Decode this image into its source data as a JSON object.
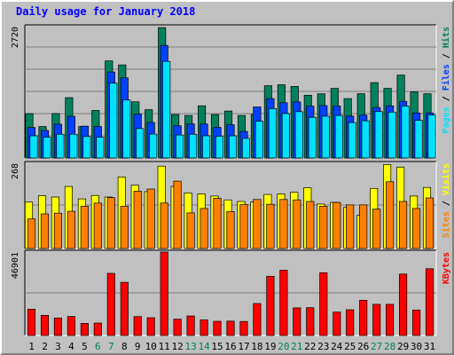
{
  "chart_data": {
    "type": "bar",
    "title": "Daily usage for January 2018",
    "categories": [
      "1",
      "2",
      "3",
      "4",
      "5",
      "6",
      "7",
      "8",
      "9",
      "10",
      "11",
      "12",
      "13",
      "14",
      "15",
      "16",
      "17",
      "18",
      "19",
      "20",
      "21",
      "22",
      "23",
      "24",
      "25",
      "26",
      "27",
      "28",
      "29",
      "30",
      "31"
    ],
    "weekend_days": [
      "6",
      "7",
      "13",
      "14",
      "20",
      "21",
      "27",
      "28"
    ],
    "grid": true,
    "panels": [
      {
        "id": "hits-files-pages",
        "max_label": "2720",
        "ymax": 2720,
        "axis_label_parts": [
          {
            "text": "Pages",
            "color": "#00e0ff"
          },
          {
            "text": " / ",
            "color": "#000000"
          },
          {
            "text": "Files",
            "color": "#0040ff"
          },
          {
            "text": " / ",
            "color": "#000000"
          },
          {
            "text": "Hits",
            "color": "#00805c"
          }
        ],
        "series": [
          {
            "name": "Hits",
            "color": "#00805c",
            "values": [
              918,
              650,
              918,
              1250,
              650,
              984,
              2010,
              1928,
              1164,
              1000,
              2700,
              900,
              880,
              1080,
              900,
              972,
              880,
              900,
              1496,
              1516,
              1482,
              1300,
              1328,
              1440,
              1230,
              1330,
              1560,
              1440,
              1716,
              1370,
              1328
            ]
          },
          {
            "name": "Files",
            "color": "#0040ff",
            "values": [
              632,
              570,
              700,
              864,
              659,
              650,
              1780,
              1660,
              907,
              735,
              2330,
              667,
              706,
              705,
              634,
              690,
              550,
              1057,
              1230,
              1143,
              1160,
              1074,
              1085,
              1077,
              868,
              885,
              1046,
              1078,
              1173,
              931,
              934
            ]
          },
          {
            "name": "Pages",
            "color": "#00e0ff",
            "values": [
              460,
              432,
              490,
              491,
              445,
              430,
              1550,
              1200,
              610,
              495,
              2000,
              476,
              490,
              460,
              450,
              458,
              406,
              761,
              1022,
              921,
              960,
              842,
              866,
              880,
              734,
              770,
              961,
              951,
              1075,
              780,
              890
            ]
          }
        ]
      },
      {
        "id": "visits-sites",
        "max_label": "268",
        "ymax": 268,
        "axis_label_parts": [
          {
            "text": "Sites",
            "color": "#ff8000"
          },
          {
            "text": " / ",
            "color": "#000000"
          },
          {
            "text": "Visits",
            "color": "#ffff00"
          }
        ],
        "series": [
          {
            "name": "Visits",
            "color": "#ffff00",
            "values": [
              146,
              166,
              162,
              195,
              156,
              167,
              162,
              225,
              199,
              179,
              259,
              195,
              175,
              172,
              165,
              153,
              148,
              146,
              170,
              172,
              177,
              191,
              140,
              145,
              129,
              104,
              189,
              264,
              256,
              165,
              192
            ]
          },
          {
            "name": "Sites",
            "color": "#ff8000",
            "values": [
              93,
              109,
              111,
              117,
              133,
              143,
              160,
              133,
              180,
              187,
              143,
              212,
              112,
              126,
              158,
              116,
              138,
              154,
              139,
              154,
              153,
              148,
              133,
              145,
              137,
              137,
              124,
              210,
              148,
              126,
              159
            ]
          }
        ]
      },
      {
        "id": "kbytes",
        "max_label": "46901",
        "ymax": 46901,
        "axis_label_parts": [
          {
            "text": "KBytes",
            "color": "#ff0000"
          }
        ],
        "series": [
          {
            "name": "KBytes",
            "color": "#ff0000",
            "values": [
              14840,
              11340,
              9820,
              10700,
              6780,
              6980,
              34950,
              29880,
              10650,
              9990,
              46901,
              9200,
              10960,
              8780,
              7980,
              8060,
              7890,
              17960,
              33290,
              36650,
              15510,
              15650,
              35280,
              13130,
              14450,
              19830,
              17490,
              17510,
              34510,
              14320,
              37510
            ]
          }
        ]
      }
    ]
  }
}
